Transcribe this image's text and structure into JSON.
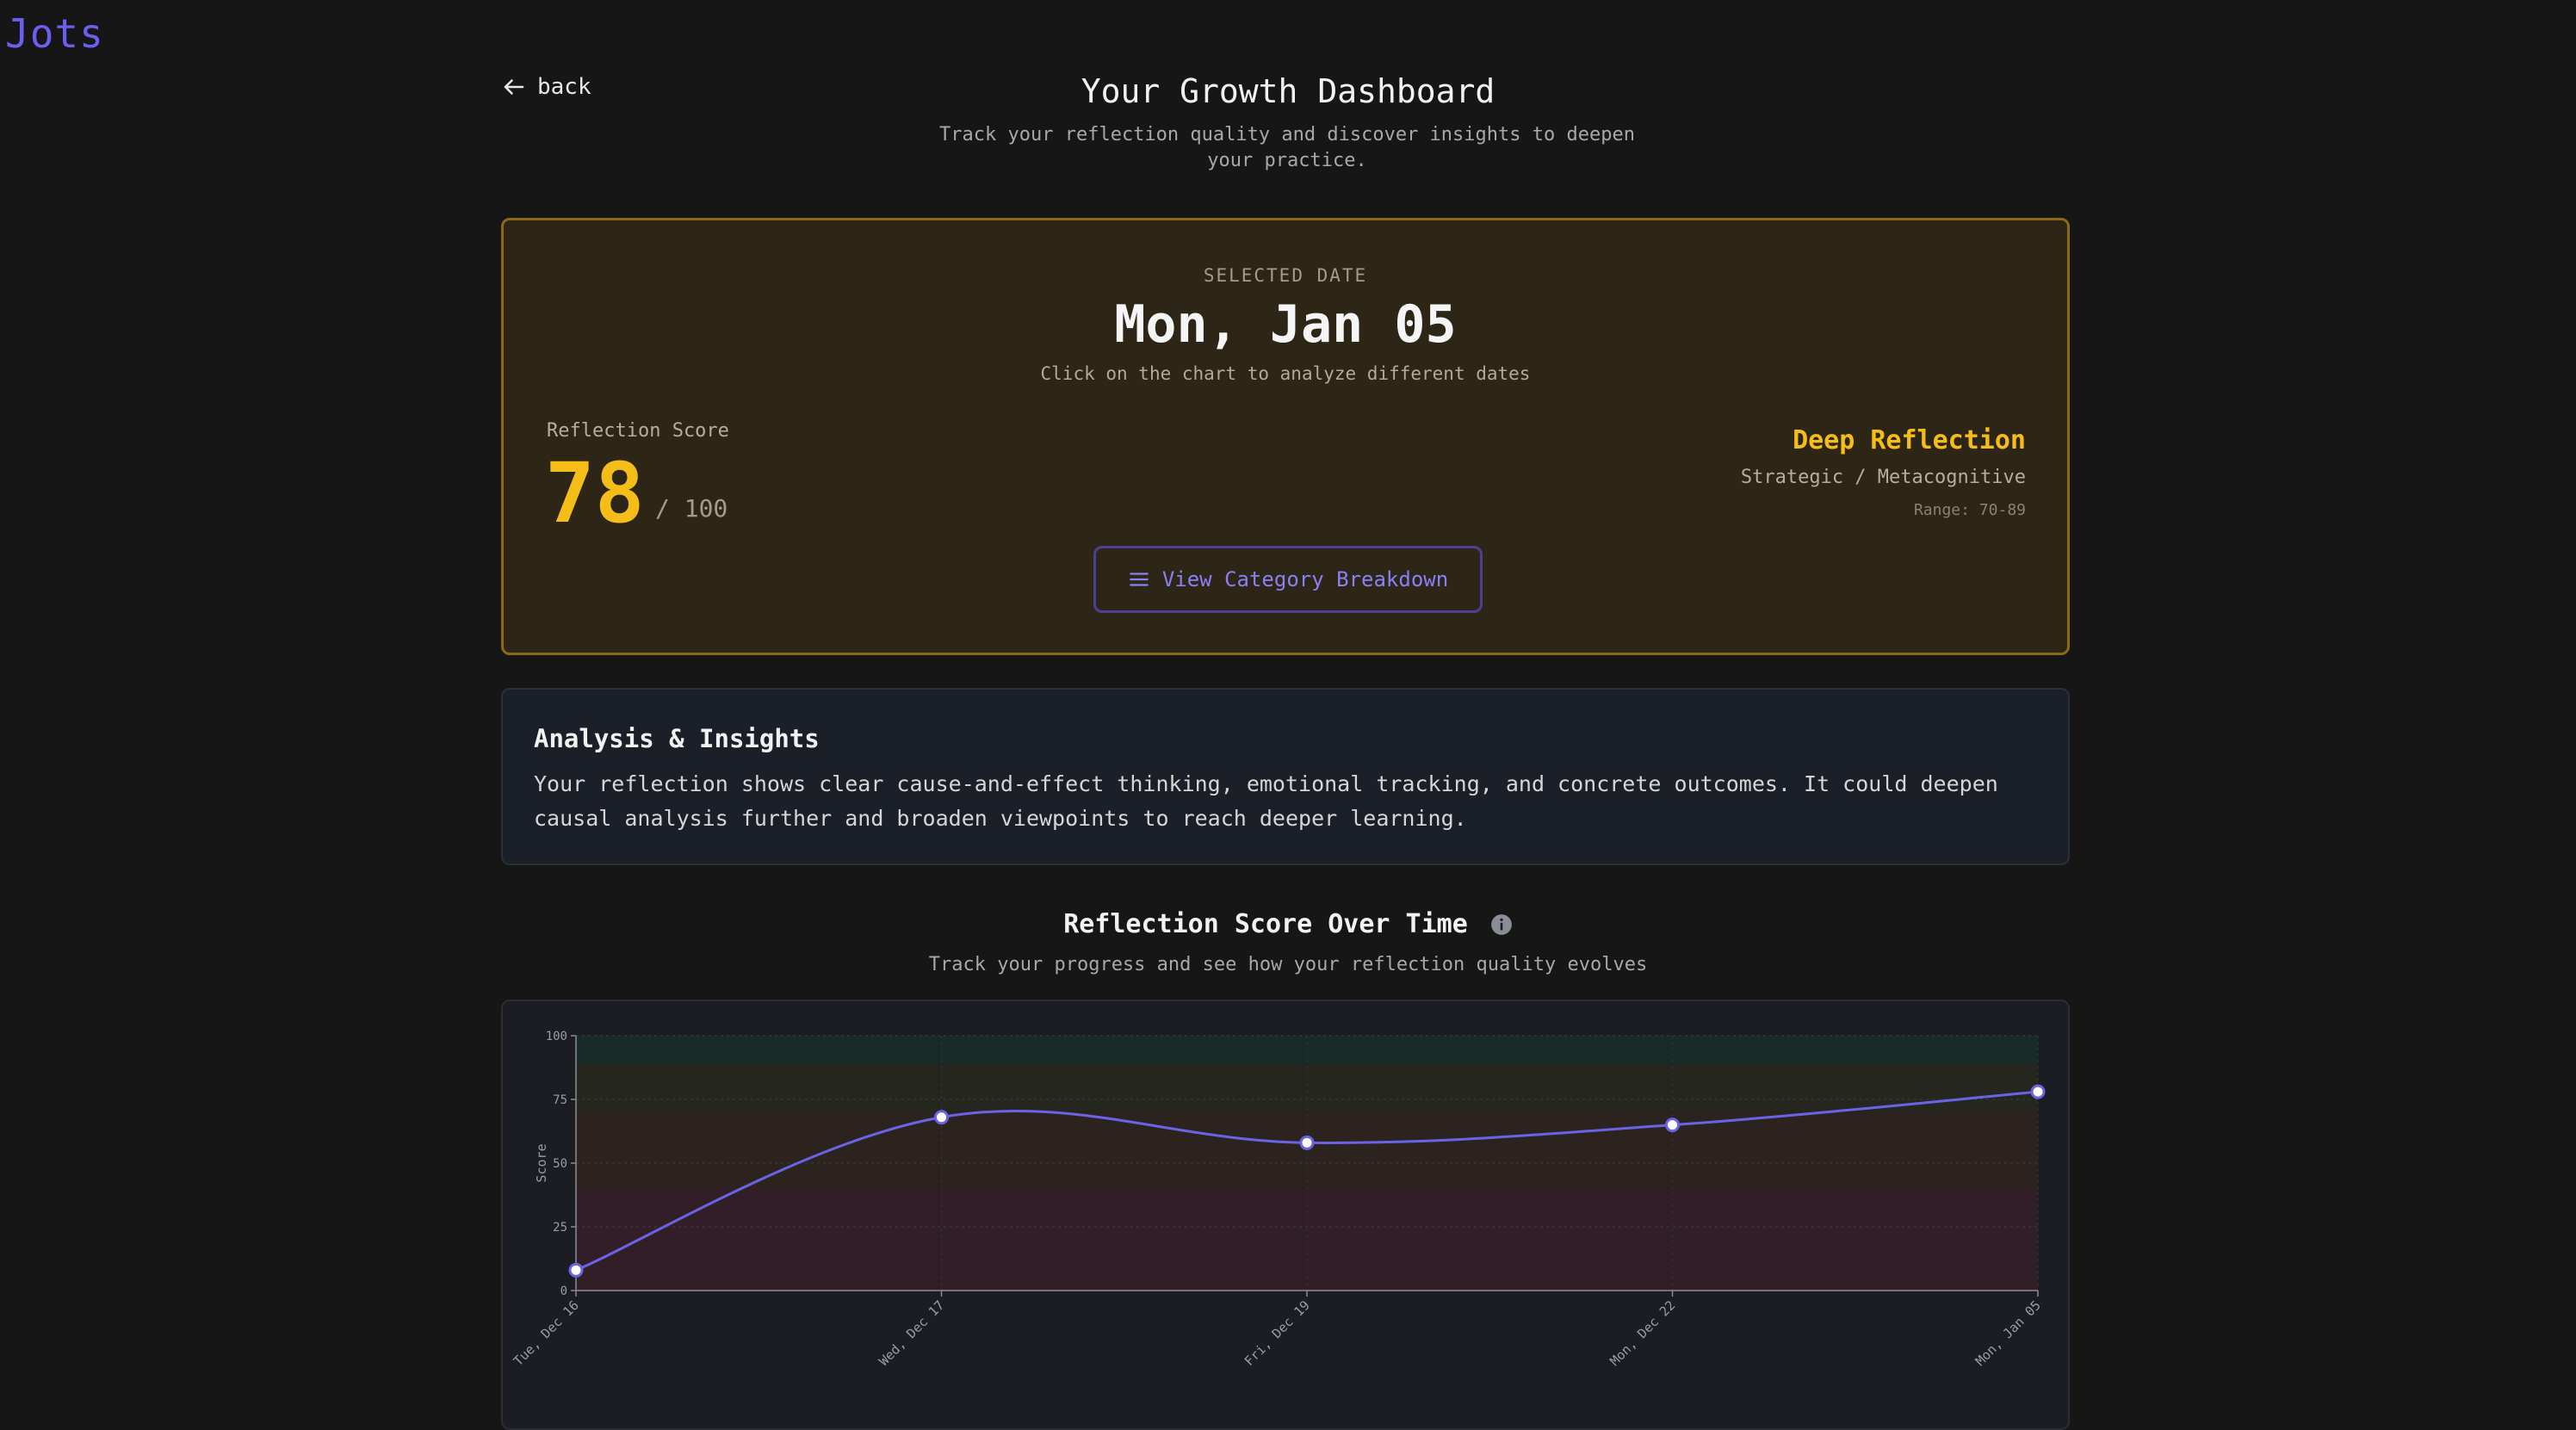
{
  "app": {
    "logo": "Jots"
  },
  "nav": {
    "back_label": "back"
  },
  "header": {
    "title": "Your Growth Dashboard",
    "subtitle": "Track your reflection quality and discover insights to deepen your practice."
  },
  "selected": {
    "label": "SELECTED DATE",
    "date": "Mon, Jan 05",
    "hint": "Click on the chart to analyze different dates",
    "score_label": "Reflection Score",
    "score": "78",
    "score_max": "/ 100",
    "level": "Deep Reflection",
    "level_sub": "Strategic / Metacognitive",
    "range": "Range: 70-89",
    "breakdown_button": "View Category Breakdown"
  },
  "insights": {
    "title": "Analysis & Insights",
    "body": "Your reflection shows clear cause-and-effect thinking, emotional tracking, and concrete outcomes. It could deepen causal analysis further and broaden viewpoints to reach deeper learning."
  },
  "chart_section": {
    "title": "Reflection Score Over Time",
    "subtitle": "Track your progress and see how your reflection quality evolves"
  },
  "colors": {
    "accent": "#6a5ff0",
    "score": "#f5bd18",
    "line": "#6b63e6"
  },
  "icons": {
    "back": "arrow-left-icon",
    "menu": "menu-lines-icon",
    "info": "info-icon"
  },
  "chart_data": {
    "type": "line",
    "title": "Reflection Score Over Time",
    "ylabel": "Score",
    "xlabel": "",
    "ylim": [
      0,
      100
    ],
    "yticks": [
      0,
      25,
      50,
      75,
      100
    ],
    "categories": [
      "Tue, Dec 16",
      "Wed, Dec 17",
      "Fri, Dec 19",
      "Mon, Dec 22",
      "Mon, Jan 05"
    ],
    "series": [
      {
        "values": [
          8,
          68,
          58,
          65,
          78
        ]
      }
    ],
    "bands": [
      {
        "from": 0,
        "to": 40,
        "color": "#3a1f28"
      },
      {
        "from": 40,
        "to": 70,
        "color": "#33261d"
      },
      {
        "from": 70,
        "to": 89,
        "color": "#2a2a1c"
      },
      {
        "from": 89,
        "to": 100,
        "color": "#17302a"
      }
    ],
    "grid": true,
    "legend": "none"
  }
}
